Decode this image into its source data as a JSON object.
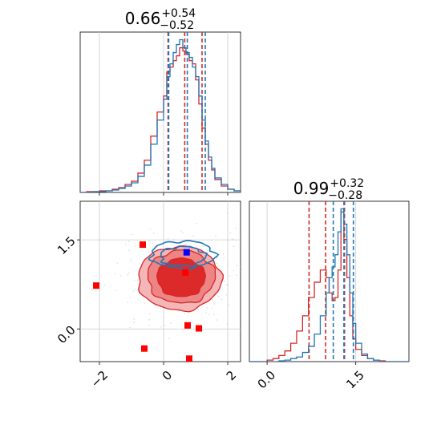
{
  "chart_data": [
    {
      "type": "histogram",
      "panel": "top-left",
      "title": {
        "value": "0.66",
        "upper": "+0.54",
        "lower": "−0.52"
      },
      "xlim": [
        -2.6,
        2.4
      ],
      "series": [
        {
          "color": "#d62728",
          "bins_x": [
            -2.6,
            -2.4,
            -2.2,
            -2.0,
            -1.8,
            -1.6,
            -1.4,
            -1.2,
            -1.0,
            -0.8,
            -0.6,
            -0.4,
            -0.2,
            0.0,
            0.1,
            0.2,
            0.3,
            0.4,
            0.5,
            0.6,
            0.7,
            0.8,
            0.9,
            1.0,
            1.1,
            1.2,
            1.3,
            1.4,
            1.5,
            1.6,
            1.8,
            2.0,
            2.2,
            2.4
          ],
          "counts": [
            0,
            0.005,
            0.005,
            0.01,
            0.01,
            0.02,
            0.03,
            0.05,
            0.07,
            0.12,
            0.2,
            0.35,
            0.5,
            0.6,
            0.75,
            0.78,
            0.82,
            0.85,
            0.9,
            0.88,
            0.86,
            0.82,
            0.8,
            0.7,
            0.55,
            0.4,
            0.3,
            0.2,
            0.14,
            0.08,
            0.04,
            0.02,
            0.01
          ],
          "quantile_lines": [
            0.14,
            0.66,
            1.2
          ]
        },
        {
          "color": "#1f77b4",
          "bins_x": [
            -2.6,
            -2.4,
            -2.2,
            -2.0,
            -1.8,
            -1.6,
            -1.4,
            -1.2,
            -1.0,
            -0.8,
            -0.6,
            -0.4,
            -0.2,
            0.0,
            0.1,
            0.2,
            0.3,
            0.4,
            0.5,
            0.6,
            0.7,
            0.8,
            0.9,
            1.0,
            1.1,
            1.2,
            1.3,
            1.4,
            1.5,
            1.6,
            1.8,
            2.0,
            2.2,
            2.4
          ],
          "counts": [
            0,
            0,
            0.005,
            0.005,
            0.01,
            0.015,
            0.025,
            0.04,
            0.06,
            0.1,
            0.17,
            0.3,
            0.45,
            0.58,
            0.72,
            0.8,
            0.87,
            0.92,
            0.95,
            0.9,
            0.87,
            0.84,
            0.78,
            0.72,
            0.6,
            0.45,
            0.32,
            0.22,
            0.15,
            0.09,
            0.05,
            0.02,
            0.01
          ],
          "quantile_lines": [
            0.16,
            0.74,
            1.3
          ]
        }
      ]
    },
    {
      "type": "contour",
      "panel": "bottom-left",
      "xlim": [
        -2.6,
        2.4
      ],
      "ylim": [
        -0.55,
        2.15
      ],
      "x_ticks": [
        "−2",
        "0",
        "2"
      ],
      "x_tick_values": [
        -2,
        0,
        2
      ],
      "y_ticks": [
        "0.0",
        "1.5"
      ],
      "y_tick_values": [
        0.0,
        1.5
      ],
      "grid": true,
      "red_contour_center": [
        0.5,
        0.85
      ],
      "blue_contour_center": [
        0.6,
        1.25
      ],
      "markers": [
        {
          "x": -2.1,
          "y": 0.73,
          "color": "#ff0000"
        },
        {
          "x": -0.65,
          "y": 1.42,
          "color": "#ff0000"
        },
        {
          "x": 0.68,
          "y": 0.95,
          "color": "#ff0000"
        },
        {
          "x": -0.6,
          "y": -0.33,
          "color": "#ff0000"
        },
        {
          "x": 0.75,
          "y": 0.06,
          "color": "#ff0000"
        },
        {
          "x": 1.1,
          "y": 0.01,
          "color": "#ff0000"
        },
        {
          "x": 0.8,
          "y": -0.5,
          "color": "#ff0000"
        },
        {
          "x": 0.72,
          "y": 1.29,
          "color": "#0000ff"
        }
      ]
    },
    {
      "type": "histogram",
      "panel": "bottom-right",
      "title": {
        "value": "0.99",
        "upper": "+0.32",
        "lower": "−0.28"
      },
      "xlim": [
        -0.3,
        2.4
      ],
      "x_ticks": [
        "0.0",
        "1.5"
      ],
      "x_tick_values": [
        0.0,
        1.5
      ],
      "series": [
        {
          "color": "#d62728",
          "bins_x": [
            -0.3,
            0.0,
            0.1,
            0.2,
            0.3,
            0.4,
            0.5,
            0.6,
            0.7,
            0.8,
            0.9,
            1.0,
            1.05,
            1.1,
            1.15,
            1.2,
            1.25,
            1.3,
            1.35,
            1.4,
            1.45,
            1.5,
            1.6,
            1.7,
            1.8,
            1.9,
            2.0,
            2.1,
            2.4
          ],
          "counts": [
            0,
            0.01,
            0.02,
            0.04,
            0.07,
            0.12,
            0.2,
            0.3,
            0.42,
            0.52,
            0.6,
            0.55,
            0.45,
            0.4,
            0.42,
            0.6,
            0.98,
            0.8,
            0.55,
            0.3,
            0.15,
            0.08,
            0.04,
            0.02,
            0.01,
            0.005,
            0,
            0
          ],
          "quantile_lines": [
            0.71,
            0.99,
            1.31
          ]
        },
        {
          "color": "#1f77b4",
          "bins_x": [
            -0.3,
            0.0,
            0.1,
            0.2,
            0.3,
            0.4,
            0.5,
            0.6,
            0.7,
            0.8,
            0.9,
            1.0,
            1.05,
            1.1,
            1.15,
            1.2,
            1.25,
            1.3,
            1.35,
            1.4,
            1.45,
            1.5,
            1.6,
            1.7,
            1.8,
            1.9,
            2.0,
            2.1,
            2.4
          ],
          "counts": [
            0,
            0,
            0,
            0.005,
            0.01,
            0.02,
            0.03,
            0.06,
            0.1,
            0.18,
            0.3,
            0.45,
            0.55,
            0.62,
            0.7,
            0.85,
            1.0,
            0.9,
            0.7,
            0.45,
            0.25,
            0.12,
            0.05,
            0.02,
            0.01,
            0,
            0,
            0
          ],
          "quantile_lines": [
            1.12,
            1.3,
            1.46
          ]
        }
      ]
    }
  ]
}
